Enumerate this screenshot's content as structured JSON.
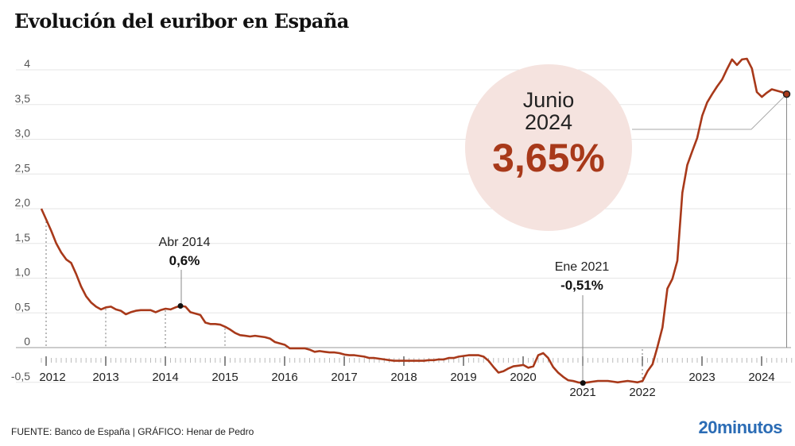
{
  "title": "Evolución del euribor en España",
  "footer": {
    "source": "FUENTE: Banco de España  |  GRÁFICO: Henar de Pedro",
    "logo": "20minutos"
  },
  "colors": {
    "line": "#a8391a",
    "highlight_circle": "#f5e3df",
    "logo": "#2b6cb5"
  },
  "chart_data": {
    "type": "line",
    "title": "Evolución del euribor en España",
    "xlabel": "",
    "ylabel": "",
    "ylim": [
      -0.5,
      4
    ],
    "yticks": [
      "4",
      "3,5",
      "3,0",
      "2,5",
      "2,0",
      "1,5",
      "1,0",
      "0,5",
      "0",
      "-0,5"
    ],
    "ytick_values": [
      4,
      3.5,
      3,
      2.5,
      2,
      1.5,
      1,
      0.5,
      0,
      -0.5
    ],
    "xticks": [
      "2012",
      "2013",
      "2014",
      "2015",
      "2016",
      "2017",
      "2018",
      "2019",
      "2020",
      "2021",
      "2022",
      "2023",
      "2024"
    ],
    "grid": true,
    "start": "2011-12",
    "frequency": "monthly",
    "values": [
      2.0,
      1.84,
      1.68,
      1.5,
      1.37,
      1.27,
      1.22,
      1.06,
      0.88,
      0.74,
      0.65,
      0.59,
      0.55,
      0.58,
      0.59,
      0.55,
      0.53,
      0.48,
      0.51,
      0.53,
      0.54,
      0.54,
      0.54,
      0.51,
      0.54,
      0.56,
      0.55,
      0.58,
      0.6,
      0.59,
      0.51,
      0.49,
      0.47,
      0.36,
      0.34,
      0.34,
      0.33,
      0.3,
      0.26,
      0.21,
      0.18,
      0.17,
      0.16,
      0.17,
      0.16,
      0.15,
      0.13,
      0.08,
      0.06,
      0.04,
      -0.01,
      -0.01,
      -0.01,
      -0.01,
      -0.03,
      -0.06,
      -0.05,
      -0.06,
      -0.07,
      -0.07,
      -0.08,
      -0.1,
      -0.11,
      -0.11,
      -0.12,
      -0.13,
      -0.15,
      -0.15,
      -0.16,
      -0.17,
      -0.18,
      -0.19,
      -0.19,
      -0.19,
      -0.19,
      -0.19,
      -0.19,
      -0.19,
      -0.18,
      -0.18,
      -0.17,
      -0.17,
      -0.15,
      -0.15,
      -0.13,
      -0.12,
      -0.11,
      -0.11,
      -0.11,
      -0.13,
      -0.19,
      -0.28,
      -0.36,
      -0.34,
      -0.3,
      -0.27,
      -0.26,
      -0.25,
      -0.29,
      -0.27,
      -0.11,
      -0.08,
      -0.15,
      -0.28,
      -0.36,
      -0.42,
      -0.47,
      -0.48,
      -0.5,
      -0.51,
      -0.5,
      -0.49,
      -0.48,
      -0.48,
      -0.48,
      -0.49,
      -0.5,
      -0.49,
      -0.48,
      -0.49,
      -0.5,
      -0.48,
      -0.34,
      -0.24,
      0.01,
      0.29,
      0.85,
      0.99,
      1.25,
      2.23,
      2.63,
      2.83,
      3.02,
      3.34,
      3.53,
      3.65,
      3.76,
      3.86,
      4.01,
      4.15,
      4.07,
      4.15,
      4.16,
      4.02,
      3.68,
      3.61,
      3.67,
      3.72,
      3.7,
      3.68,
      3.65
    ],
    "annotations": [
      {
        "date": "2014-04",
        "label": "Abr 2014",
        "value_label": "0,6%",
        "value": 0.6
      },
      {
        "date": "2021-01",
        "label": "Ene 2021",
        "value_label": "-0,51%",
        "value": -0.51
      },
      {
        "date": "2024-06",
        "label_line1": "Junio",
        "label_line2": "2024",
        "value_label": "3,65%",
        "value": 3.65
      }
    ]
  }
}
